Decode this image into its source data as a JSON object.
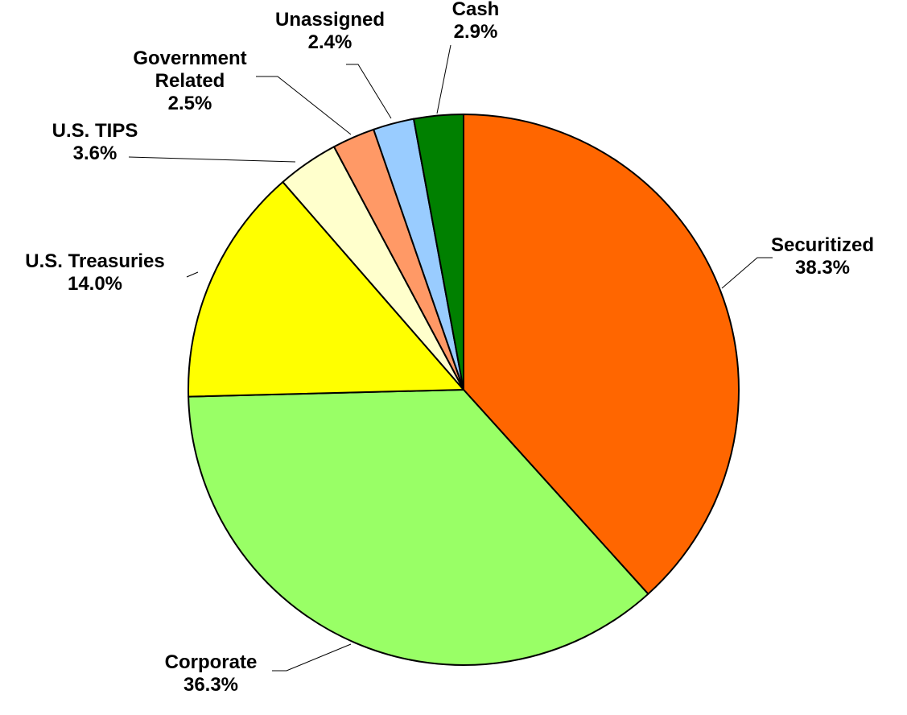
{
  "chart_data": {
    "type": "pie",
    "start_angle_deg": 0,
    "direction": "clockwise",
    "slices": [
      {
        "label": "Securitized",
        "value": 38.3,
        "value_label": "38.3%",
        "color": "#FF6600"
      },
      {
        "label": "Corporate",
        "value": 36.3,
        "value_label": "36.3%",
        "color": "#99FF66"
      },
      {
        "label": "U.S. Treasuries",
        "value": 14.0,
        "value_label": "14.0%",
        "color": "#FFFF00"
      },
      {
        "label": "U.S. TIPS",
        "value": 3.6,
        "value_label": "3.6%",
        "color": "#FFFFCC"
      },
      {
        "label": "Government Related",
        "value": 2.5,
        "value_label": "2.5%",
        "color": "#FF9966"
      },
      {
        "label": "Unassigned",
        "value": 2.4,
        "value_label": "2.4%",
        "color": "#99CCFF"
      },
      {
        "label": "Cash",
        "value": 2.9,
        "value_label": "2.9%",
        "color": "#008000"
      }
    ],
    "legend": "none",
    "labels_position": "outside with leader lines"
  }
}
